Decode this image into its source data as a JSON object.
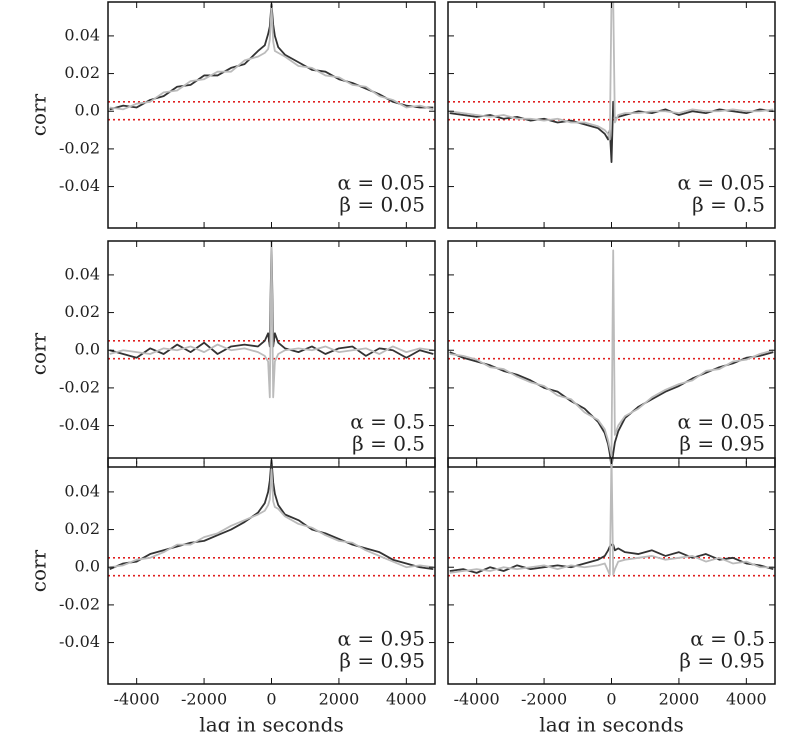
{
  "chart_data": [
    {
      "type": "line",
      "ylabel": "corr",
      "annotations": [
        "α = 0.05",
        "β = 0.05"
      ],
      "x": [
        -4800,
        -4400,
        -4000,
        -3600,
        -3200,
        -2800,
        -2400,
        -2000,
        -1600,
        -1200,
        -800,
        -400,
        -200,
        -100,
        -50,
        0,
        50,
        100,
        200,
        400,
        800,
        1200,
        1600,
        2000,
        2400,
        2800,
        3200,
        3600,
        4000,
        4400,
        4800
      ],
      "series": [
        {
          "color": "#333333",
          "values": [
            0.001,
            0.003,
            0.002,
            0.006,
            0.008,
            0.013,
            0.014,
            0.019,
            0.019,
            0.023,
            0.025,
            0.032,
            0.035,
            0.041,
            0.045,
            0.057,
            0.046,
            0.04,
            0.034,
            0.03,
            0.026,
            0.022,
            0.021,
            0.017,
            0.015,
            0.012,
            0.009,
            0.005,
            0.003,
            0.002,
            0.002
          ]
        },
        {
          "color": "#bbbbbb",
          "values": [
            0.002,
            0.001,
            0.004,
            0.005,
            0.01,
            0.011,
            0.016,
            0.017,
            0.021,
            0.021,
            0.027,
            0.029,
            0.031,
            0.033,
            0.038,
            0.055,
            0.037,
            0.032,
            0.031,
            0.029,
            0.024,
            0.023,
            0.019,
            0.018,
            0.014,
            0.013,
            0.008,
            0.006,
            0.002,
            0.003,
            0.001
          ]
        }
      ],
      "hlines": [
        0.005,
        -0.0045
      ],
      "hline_color": "#e02020",
      "xlim": [
        -4850,
        4850
      ],
      "ylim": [
        -0.062,
        0.058
      ],
      "xticks": [
        -4000,
        -2000,
        0,
        2000,
        4000
      ],
      "xticklabels": false,
      "yticks": [
        0.04,
        0.02,
        {
          "value": 0,
          "label": "0.0"
        },
        -0.02,
        -0.04
      ],
      "yticklabels": true
    },
    {
      "type": "line",
      "annotations": [
        "α = 0.05",
        "β = 0.5"
      ],
      "x": [
        -4800,
        -4400,
        -4000,
        -3600,
        -3200,
        -2800,
        -2400,
        -2000,
        -1600,
        -1200,
        -800,
        -400,
        -200,
        -100,
        -50,
        0,
        50,
        100,
        200,
        400,
        800,
        1200,
        1600,
        2000,
        2400,
        2800,
        3200,
        3600,
        4000,
        4400,
        4800
      ],
      "series": [
        {
          "color": "#333333",
          "values": [
            -0.001,
            -0.002,
            -0.003,
            -0.002,
            -0.004,
            -0.003,
            -0.005,
            -0.004,
            -0.006,
            -0.005,
            -0.007,
            -0.009,
            -0.012,
            -0.015,
            -0.01,
            -0.027,
            0.005,
            -0.004,
            -0.003,
            -0.002,
            0.0,
            -0.001,
            0.001,
            -0.002,
            0.0,
            -0.001,
            0.001,
            0.0,
            -0.001,
            0.001,
            0.0
          ]
        },
        {
          "color": "#bbbbbb",
          "values": [
            0.0,
            -0.001,
            -0.002,
            -0.003,
            -0.002,
            -0.004,
            -0.004,
            -0.005,
            -0.004,
            -0.006,
            -0.006,
            -0.008,
            -0.01,
            -0.012,
            -0.015,
            0.06,
            0.06,
            -0.006,
            -0.002,
            -0.001,
            -0.001,
            0.0,
            0.0,
            -0.001,
            0.001,
            0.0,
            0.0,
            0.001,
            0.0,
            0.0,
            0.001
          ]
        }
      ],
      "hlines": [
        0.005,
        -0.0045
      ],
      "hline_color": "#e02020",
      "xlim": [
        -4850,
        4850
      ],
      "ylim": [
        -0.062,
        0.058
      ],
      "xticks": [
        -4000,
        -2000,
        0,
        2000,
        4000
      ],
      "xticklabels": false,
      "yticks": [
        0.04,
        0.02,
        0,
        -0.02,
        -0.04
      ],
      "yticklabels": false
    },
    {
      "type": "line",
      "ylabel": "corr",
      "annotations": [
        "α = 0.5",
        "β = 0.5"
      ],
      "x": [
        -4800,
        -4400,
        -4000,
        -3600,
        -3200,
        -2800,
        -2400,
        -2000,
        -1600,
        -1200,
        -800,
        -400,
        -200,
        -100,
        -50,
        0,
        50,
        100,
        200,
        400,
        800,
        1200,
        1600,
        2000,
        2400,
        2800,
        3200,
        3600,
        4000,
        4400,
        4800
      ],
      "series": [
        {
          "color": "#333333",
          "values": [
            0.0,
            -0.002,
            -0.004,
            0.001,
            -0.002,
            0.003,
            -0.001,
            0.004,
            -0.002,
            0.002,
            0.003,
            0.002,
            0.005,
            0.009,
            0.002,
            0.058,
            0.002,
            0.009,
            0.004,
            0.001,
            -0.001,
            0.002,
            -0.002,
            0.001,
            0.002,
            -0.003,
            0.001,
            0.0,
            -0.004,
            0.0,
            -0.002
          ]
        },
        {
          "color": "#bbbbbb",
          "values": [
            -0.002,
            0.0,
            -0.001,
            -0.002,
            0.001,
            0.0,
            0.002,
            -0.001,
            0.003,
            0.0,
            0.001,
            -0.001,
            -0.003,
            -0.006,
            -0.025,
            0.06,
            -0.025,
            -0.006,
            -0.002,
            0.0,
            0.001,
            0.0,
            0.002,
            -0.001,
            0.0,
            0.001,
            -0.002,
            0.002,
            -0.001,
            0.001,
            0.0
          ]
        }
      ],
      "hlines": [
        0.005,
        -0.0045
      ],
      "hline_color": "#e02020",
      "xlim": [
        -4850,
        4850
      ],
      "ylim": [
        -0.062,
        0.058
      ],
      "xticks": [
        -4000,
        -2000,
        0,
        2000,
        4000
      ],
      "xticklabels": false,
      "yticks": [
        0.04,
        0.02,
        {
          "value": 0,
          "label": "0.0"
        },
        -0.02,
        -0.04
      ],
      "yticklabels": true
    },
    {
      "type": "line",
      "annotations": [
        "α = 0.05",
        "β = 0.95"
      ],
      "x": [
        -4800,
        -4400,
        -4000,
        -3600,
        -3200,
        -2800,
        -2400,
        -2000,
        -1600,
        -1200,
        -800,
        -400,
        -200,
        -100,
        -50,
        0,
        50,
        100,
        200,
        400,
        800,
        1200,
        1600,
        2000,
        2400,
        2800,
        3200,
        3600,
        4000,
        4400,
        4800
      ],
      "series": [
        {
          "color": "#333333",
          "values": [
            -0.001,
            -0.004,
            -0.006,
            -0.008,
            -0.011,
            -0.013,
            -0.016,
            -0.02,
            -0.022,
            -0.027,
            -0.031,
            -0.038,
            -0.044,
            -0.05,
            -0.055,
            -0.062,
            -0.055,
            -0.049,
            -0.043,
            -0.036,
            -0.03,
            -0.026,
            -0.022,
            -0.019,
            -0.015,
            -0.012,
            -0.009,
            -0.007,
            -0.004,
            -0.003,
            -0.001
          ]
        },
        {
          "color": "#bbbbbb",
          "values": [
            -0.002,
            -0.003,
            -0.005,
            -0.009,
            -0.01,
            -0.014,
            -0.017,
            -0.019,
            -0.024,
            -0.026,
            -0.033,
            -0.037,
            -0.042,
            -0.048,
            -0.052,
            -0.056,
            0.053,
            -0.045,
            -0.04,
            -0.035,
            -0.031,
            -0.025,
            -0.021,
            -0.018,
            -0.016,
            -0.011,
            -0.01,
            -0.006,
            -0.005,
            -0.002,
            0.0
          ]
        }
      ],
      "hlines": [
        0.005,
        -0.0045
      ],
      "hline_color": "#e02020",
      "xlim": [
        -4850,
        4850
      ],
      "ylim": [
        -0.062,
        0.058
      ],
      "xticks": [
        -4000,
        -2000,
        0,
        2000,
        4000
      ],
      "xticklabels": false,
      "yticks": [
        0.04,
        0.02,
        0,
        -0.02,
        -0.04
      ],
      "yticklabels": false
    },
    {
      "type": "line",
      "ylabel": "corr",
      "xlabel": "lag in seconds",
      "annotations": [
        "α = 0.95",
        "β = 0.95"
      ],
      "x": [
        -4800,
        -4400,
        -4000,
        -3600,
        -3200,
        -2800,
        -2400,
        -2000,
        -1600,
        -1200,
        -800,
        -400,
        -200,
        -100,
        -50,
        0,
        50,
        100,
        200,
        400,
        800,
        1200,
        1600,
        2000,
        2400,
        2800,
        3200,
        3600,
        4000,
        4400,
        4800
      ],
      "series": [
        {
          "color": "#333333",
          "values": [
            -0.001,
            0.002,
            0.003,
            0.007,
            0.009,
            0.011,
            0.013,
            0.014,
            0.017,
            0.02,
            0.024,
            0.029,
            0.034,
            0.04,
            0.046,
            0.057,
            0.045,
            0.039,
            0.033,
            0.028,
            0.025,
            0.02,
            0.018,
            0.015,
            0.012,
            0.01,
            0.008,
            0.004,
            0.002,
            0.0,
            -0.001
          ]
        },
        {
          "color": "#bbbbbb",
          "values": [
            0.0,
            0.001,
            0.004,
            0.005,
            0.008,
            0.012,
            0.012,
            0.016,
            0.018,
            0.022,
            0.025,
            0.028,
            0.03,
            0.033,
            0.036,
            0.052,
            0.035,
            0.032,
            0.031,
            0.027,
            0.023,
            0.021,
            0.017,
            0.014,
            0.013,
            0.009,
            0.006,
            0.003,
            0.0,
            0.001,
            0.0
          ]
        }
      ],
      "hlines": [
        0.005,
        -0.0045
      ],
      "hline_color": "#e02020",
      "xlim": [
        -4850,
        4850
      ],
      "ylim": [
        -0.062,
        0.058
      ],
      "xticks": [
        -4000,
        -2000,
        {
          "value": 0,
          "label": "0"
        },
        2000,
        4000
      ],
      "xticklabels": true,
      "yticks": [
        0.04,
        0.02,
        {
          "value": 0,
          "label": "0.0"
        },
        -0.02,
        -0.04
      ],
      "yticklabels": true
    },
    {
      "type": "line",
      "xlabel": "lag in seconds",
      "annotations": [
        "α = 0.5",
        "β = 0.95"
      ],
      "x": [
        -4800,
        -4400,
        -4000,
        -3600,
        -3200,
        -2800,
        -2400,
        -2000,
        -1600,
        -1200,
        -800,
        -400,
        -200,
        -100,
        -50,
        0,
        50,
        100,
        200,
        400,
        800,
        1200,
        1600,
        2000,
        2400,
        2800,
        3200,
        3600,
        4000,
        4400,
        4800
      ],
      "series": [
        {
          "color": "#333333",
          "values": [
            -0.002,
            -0.001,
            -0.003,
            0.0,
            -0.002,
            0.001,
            -0.001,
            0.0,
            0.001,
            0.0,
            0.002,
            0.004,
            0.006,
            0.009,
            0.011,
            0.012,
            0.012,
            0.009,
            0.01,
            0.008,
            0.007,
            0.009,
            0.006,
            0.008,
            0.005,
            0.007,
            0.004,
            0.005,
            0.002,
            0.001,
            -0.001
          ]
        },
        {
          "color": "#bbbbbb",
          "values": [
            -0.003,
            -0.002,
            -0.001,
            -0.002,
            0.0,
            -0.001,
            0.0,
            0.001,
            -0.001,
            0.001,
            0.0,
            0.001,
            0.002,
            -0.002,
            -0.004,
            0.06,
            -0.004,
            -0.001,
            0.003,
            0.004,
            0.005,
            0.006,
            0.004,
            0.005,
            0.006,
            0.003,
            0.005,
            0.002,
            0.003,
            0.0,
            0.0
          ]
        }
      ],
      "hlines": [
        0.005,
        -0.0045
      ],
      "hline_color": "#e02020",
      "xlim": [
        -4850,
        4850
      ],
      "ylim": [
        -0.062,
        0.058
      ],
      "xticks": [
        -4000,
        -2000,
        {
          "value": 0,
          "label": "0"
        },
        2000,
        4000
      ],
      "xticklabels": true,
      "yticks": [
        0.04,
        0.02,
        0,
        -0.02,
        -0.04
      ],
      "yticklabels": false
    }
  ]
}
